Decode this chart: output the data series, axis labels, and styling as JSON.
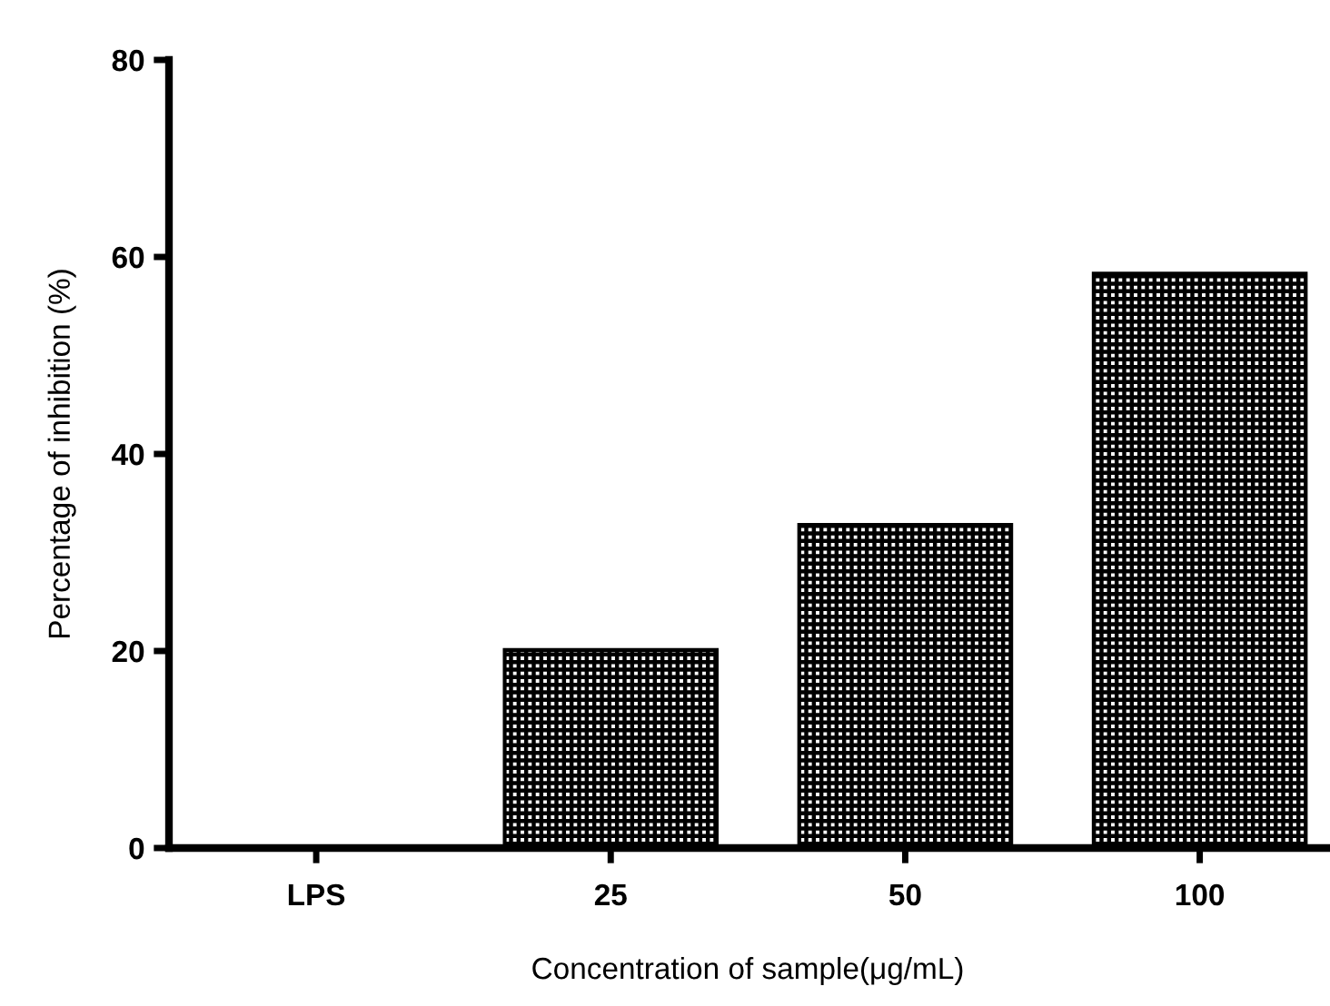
{
  "chart_data": {
    "type": "bar",
    "xlabel": "Concentration of sample(μg/mL)",
    "ylabel": "Percentage of inhibition (%)",
    "categories": [
      "LPS",
      "25",
      "50",
      "100"
    ],
    "values": [
      0,
      20.1,
      32.8,
      58.3
    ],
    "color": "#000000",
    "ylim": [
      0,
      80
    ],
    "yticks": [
      0,
      20,
      40,
      60,
      80
    ],
    "grid": false
  }
}
